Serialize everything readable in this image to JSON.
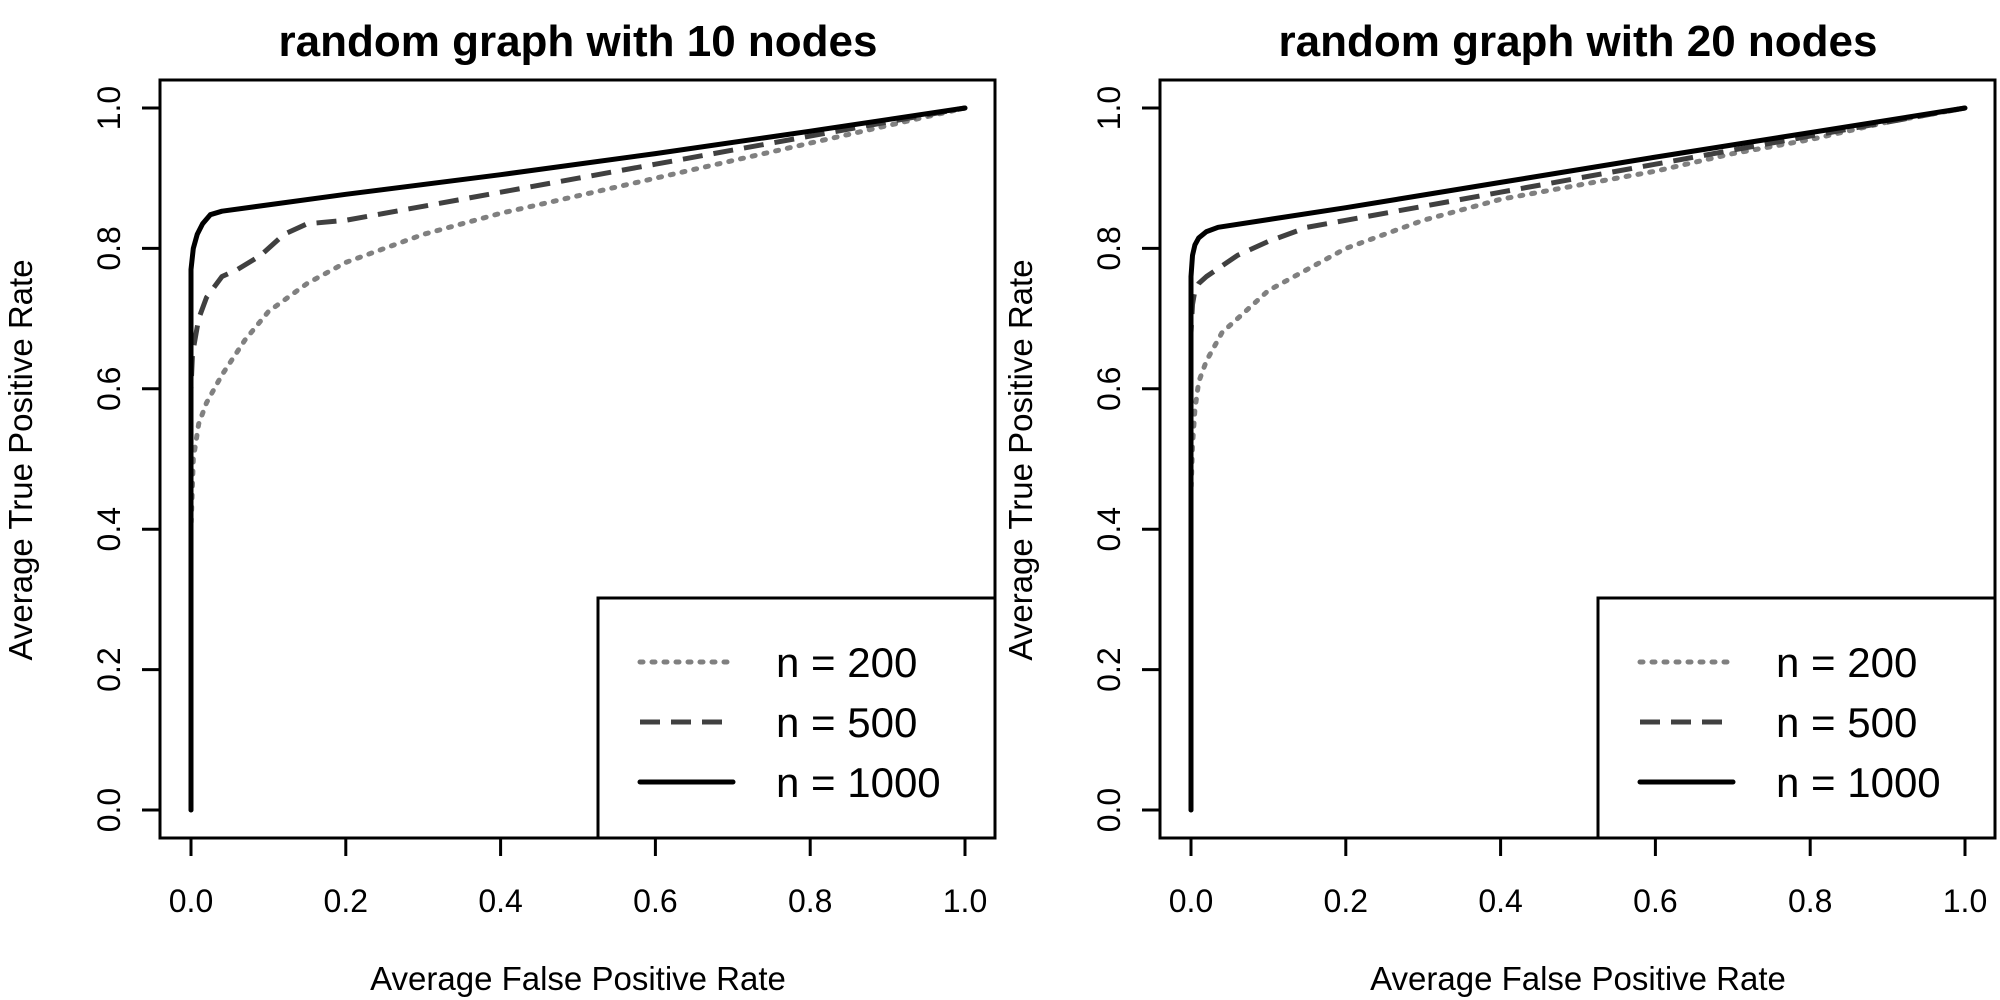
{
  "chart_data": [
    {
      "type": "line",
      "title": "random graph with 10 nodes",
      "xlabel": "Average False Positive Rate",
      "ylabel": "Average True Positive Rate",
      "xlim": [
        0,
        1
      ],
      "ylim": [
        0,
        1
      ],
      "xticks": [
        "0.0",
        "0.2",
        "0.4",
        "0.6",
        "0.8",
        "1.0"
      ],
      "yticks": [
        "0.0",
        "0.2",
        "0.4",
        "0.6",
        "0.8",
        "1.0"
      ],
      "legend_position": "bottom-right",
      "series": [
        {
          "name": "n = 200",
          "style": "dotted",
          "color": "#808080",
          "x": [
            0,
            0.0,
            0.003,
            0.01,
            0.02,
            0.04,
            0.07,
            0.1,
            0.15,
            0.2,
            0.3,
            0.4,
            0.5,
            0.6,
            0.7,
            0.8,
            0.9,
            1.0
          ],
          "y": [
            0,
            0.4,
            0.5,
            0.55,
            0.58,
            0.62,
            0.67,
            0.71,
            0.75,
            0.78,
            0.82,
            0.85,
            0.875,
            0.9,
            0.925,
            0.95,
            0.975,
            1.0
          ]
        },
        {
          "name": "n = 500",
          "style": "dashed",
          "color": "#404040",
          "x": [
            0,
            0.0,
            0.002,
            0.01,
            0.02,
            0.04,
            0.06,
            0.09,
            0.12,
            0.15,
            0.2,
            0.3,
            0.4,
            0.5,
            0.6,
            0.7,
            0.8,
            0.9,
            1.0
          ],
          "y": [
            0,
            0.6,
            0.65,
            0.7,
            0.73,
            0.76,
            0.77,
            0.79,
            0.82,
            0.835,
            0.84,
            0.86,
            0.88,
            0.9,
            0.92,
            0.94,
            0.96,
            0.98,
            1.0
          ]
        },
        {
          "name": "n = 1000",
          "style": "solid",
          "color": "#000000",
          "x": [
            0,
            0.0,
            0.003,
            0.008,
            0.015,
            0.025,
            0.04,
            0.2,
            0.4,
            0.6,
            0.8,
            1.0
          ],
          "y": [
            0,
            0.77,
            0.8,
            0.82,
            0.835,
            0.848,
            0.853,
            0.877,
            0.905,
            0.935,
            0.967,
            1.0
          ]
        }
      ]
    },
    {
      "type": "line",
      "title": "random graph with 20 nodes",
      "xlabel": "Average False Positive Rate",
      "ylabel": "Average True Positive Rate",
      "xlim": [
        0,
        1
      ],
      "ylim": [
        0,
        1
      ],
      "xticks": [
        "0.0",
        "0.2",
        "0.4",
        "0.6",
        "0.8",
        "1.0"
      ],
      "yticks": [
        "0.0",
        "0.2",
        "0.4",
        "0.6",
        "0.8",
        "1.0"
      ],
      "legend_position": "bottom-right",
      "series": [
        {
          "name": "n = 200",
          "style": "dotted",
          "color": "#808080",
          "x": [
            0,
            0.0,
            0.002,
            0.005,
            0.01,
            0.02,
            0.04,
            0.07,
            0.1,
            0.15,
            0.2,
            0.3,
            0.4,
            0.5,
            0.6,
            0.7,
            0.8,
            0.9,
            1.0
          ],
          "y": [
            0,
            0.45,
            0.52,
            0.57,
            0.61,
            0.64,
            0.68,
            0.71,
            0.74,
            0.77,
            0.8,
            0.84,
            0.87,
            0.89,
            0.91,
            0.935,
            0.955,
            0.98,
            1.0
          ]
        },
        {
          "name": "n = 500",
          "style": "dashed",
          "color": "#404040",
          "x": [
            0,
            0.0,
            0.002,
            0.005,
            0.01,
            0.02,
            0.04,
            0.06,
            0.1,
            0.15,
            0.2,
            0.3,
            0.4,
            0.5,
            0.6,
            0.7,
            0.8,
            0.9,
            1.0
          ],
          "y": [
            0,
            0.68,
            0.72,
            0.74,
            0.75,
            0.76,
            0.775,
            0.79,
            0.81,
            0.83,
            0.84,
            0.86,
            0.88,
            0.9,
            0.92,
            0.94,
            0.96,
            0.98,
            1.0
          ]
        },
        {
          "name": "n = 1000",
          "style": "solid",
          "color": "#000000",
          "x": [
            0,
            0.0,
            0.002,
            0.005,
            0.01,
            0.02,
            0.035,
            0.2,
            0.4,
            0.6,
            0.8,
            1.0
          ],
          "y": [
            0,
            0.76,
            0.79,
            0.805,
            0.815,
            0.824,
            0.83,
            0.858,
            0.894,
            0.93,
            0.965,
            1.0
          ]
        }
      ]
    }
  ]
}
